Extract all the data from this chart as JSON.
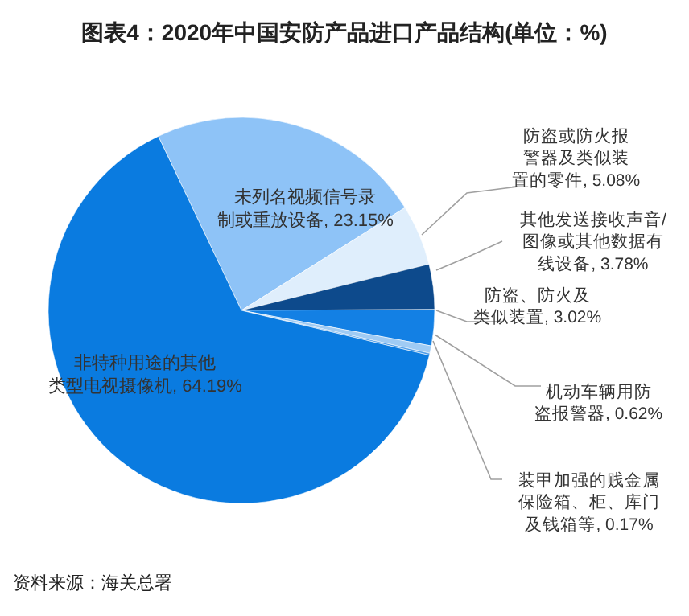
{
  "chart_data": {
    "type": "pie",
    "title": "图表4：2020年中国安防产品进口产品结构(单位：%)",
    "categories": [
      "未列名视频信号录制或重放设备",
      "防盗或防火报警器及类似装置的零件",
      "其他发送接收声音/图像或其他数据有线设备",
      "防盗、防火及类似装置",
      "机动车辆用防盗报警器",
      "装甲加强的贱金属保险箱、柜、库门及钱箱等",
      "非特种用途的其他类型电视摄像机"
    ],
    "values": [
      23.15,
      5.08,
      3.78,
      3.02,
      0.62,
      0.17,
      64.19
    ],
    "value_labels": [
      "23.15%",
      "5.08%",
      "3.78%",
      "3.02%",
      "0.62%",
      "0.17%",
      "64.19%"
    ],
    "colors": [
      "#8ec3f7",
      "#dfeefc",
      "#0d4a8c",
      "#1380e4",
      "#9fcbf4",
      "#4a9be8",
      "#0a7be0"
    ],
    "legend": false,
    "annotations": [
      "资料来源：海关总署"
    ]
  }
}
